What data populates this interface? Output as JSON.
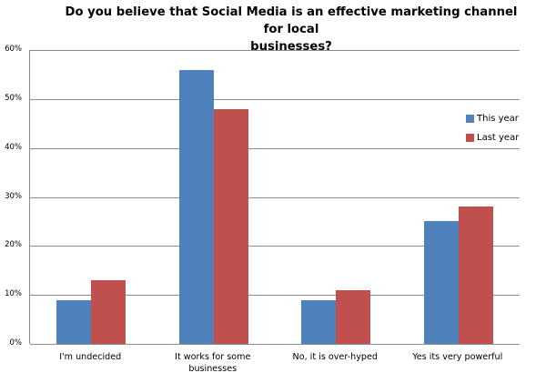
{
  "chart_data": {
    "type": "bar",
    "title": "Do you believe that Social Media is an effective marketing channel for local businesses?",
    "xlabel": "",
    "ylabel": "",
    "ylim": [
      0,
      60
    ],
    "yticks": [
      "0%",
      "10%",
      "20%",
      "30%",
      "40%",
      "50%",
      "60%"
    ],
    "grid": true,
    "legend_position": "right",
    "categories": [
      "I'm undecided",
      "It works for some businesses",
      "No, it is over-hyped",
      "Yes its very powerful"
    ],
    "series": [
      {
        "name": "This year",
        "color": "#4f81bd",
        "values": [
          9,
          56,
          9,
          25
        ]
      },
      {
        "name": "Last year",
        "color": "#c0504d",
        "values": [
          13,
          48,
          11,
          28
        ]
      }
    ]
  },
  "title_line1": "Do you believe that Social Media is an effective marketing channel for local",
  "title_line2": "businesses?",
  "xlabels": [
    [
      "I'm undecided",
      ""
    ],
    [
      "It works for some",
      "businesses"
    ],
    [
      "No, it is over-hyped",
      ""
    ],
    [
      "Yes its very powerful",
      ""
    ]
  ]
}
